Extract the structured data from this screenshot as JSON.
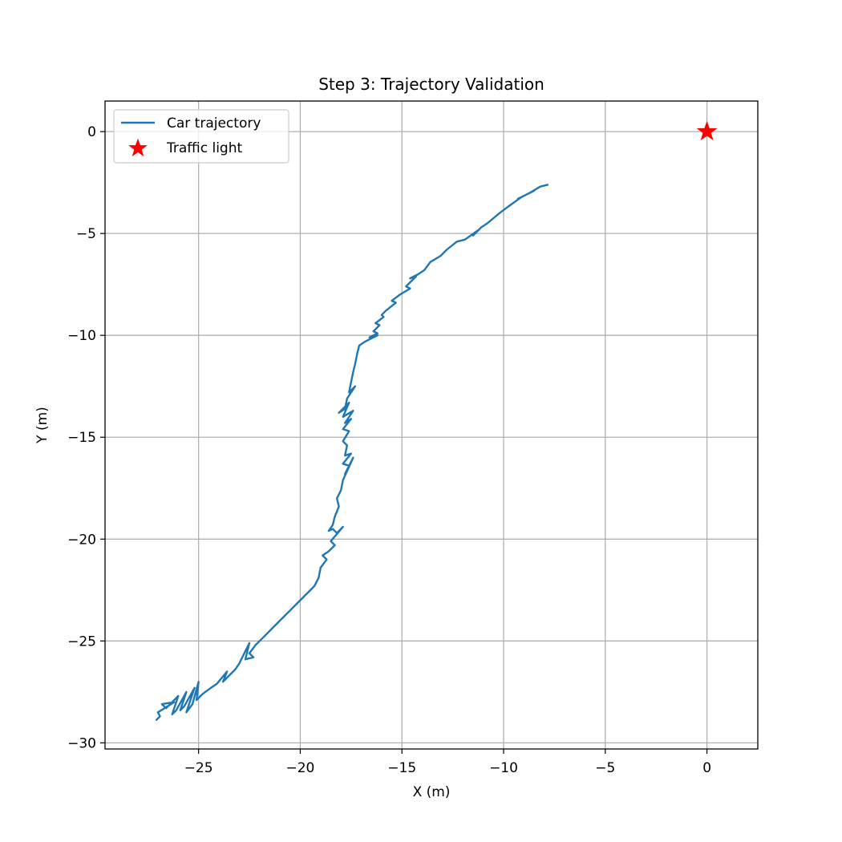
{
  "chart_data": {
    "type": "line",
    "title": "Step 3: Trajectory Validation",
    "xlabel": "X (m)",
    "ylabel": "Y (m)",
    "xlim": [
      -29.6,
      2.5
    ],
    "ylim": [
      -30.3,
      1.5
    ],
    "grid": true,
    "legend_position": "upper-left",
    "x_ticks": [
      -25,
      -20,
      -15,
      -10,
      -5,
      0
    ],
    "x_tick_labels": [
      "−25",
      "−20",
      "−15",
      "−10",
      "−5",
      "0"
    ],
    "y_ticks": [
      0,
      -5,
      -10,
      -15,
      -20,
      -25,
      -30
    ],
    "y_tick_labels": [
      "0",
      "−5",
      "−10",
      "−15",
      "−20",
      "−25",
      "−30"
    ],
    "series": [
      {
        "name": "Car trajectory",
        "color": "#1f77b4",
        "marker": "none",
        "points": [
          [
            -7.8,
            -2.6
          ],
          [
            -8.2,
            -2.7
          ],
          [
            -8.7,
            -3.0
          ],
          [
            -8.5,
            -2.9
          ],
          [
            -9.3,
            -3.3
          ],
          [
            -9.1,
            -3.2
          ],
          [
            -9.8,
            -3.7
          ],
          [
            -10.2,
            -4.0
          ],
          [
            -10.8,
            -4.5
          ],
          [
            -11.1,
            -4.7
          ],
          [
            -11.5,
            -5.1
          ],
          [
            -11.2,
            -4.8
          ],
          [
            -11.9,
            -5.3
          ],
          [
            -12.3,
            -5.4
          ],
          [
            -12.8,
            -5.8
          ],
          [
            -13.1,
            -6.1
          ],
          [
            -13.6,
            -6.4
          ],
          [
            -13.9,
            -6.8
          ],
          [
            -14.2,
            -7.0
          ],
          [
            -14.6,
            -7.2
          ],
          [
            -14.3,
            -7.1
          ],
          [
            -14.8,
            -7.6
          ],
          [
            -14.6,
            -7.7
          ],
          [
            -15.1,
            -8.0
          ],
          [
            -15.5,
            -8.3
          ],
          [
            -15.3,
            -8.4
          ],
          [
            -15.8,
            -8.8
          ],
          [
            -16.0,
            -9.0
          ],
          [
            -15.9,
            -9.1
          ],
          [
            -16.3,
            -9.4
          ],
          [
            -16.1,
            -9.5
          ],
          [
            -16.4,
            -9.8
          ],
          [
            -16.2,
            -9.9
          ],
          [
            -16.6,
            -10.1
          ],
          [
            -16.2,
            -10.0
          ],
          [
            -16.8,
            -10.3
          ],
          [
            -17.1,
            -10.5
          ],
          [
            -17.2,
            -10.9
          ],
          [
            -17.3,
            -11.4
          ],
          [
            -17.4,
            -11.8
          ],
          [
            -17.5,
            -12.3
          ],
          [
            -17.6,
            -12.8
          ],
          [
            -17.3,
            -12.5
          ],
          [
            -17.7,
            -13.1
          ],
          [
            -17.8,
            -13.6
          ],
          [
            -18.1,
            -13.8
          ],
          [
            -17.6,
            -13.3
          ],
          [
            -17.9,
            -14.0
          ],
          [
            -17.4,
            -13.7
          ],
          [
            -17.8,
            -14.3
          ],
          [
            -17.5,
            -14.1
          ],
          [
            -17.9,
            -14.6
          ],
          [
            -17.6,
            -14.7
          ],
          [
            -17.9,
            -15.2
          ],
          [
            -17.7,
            -15.4
          ],
          [
            -17.8,
            -15.9
          ],
          [
            -17.5,
            -15.8
          ],
          [
            -17.9,
            -16.3
          ],
          [
            -17.6,
            -16.4
          ],
          [
            -17.8,
            -16.8
          ],
          [
            -17.4,
            -16.0
          ],
          [
            -17.9,
            -17.1
          ],
          [
            -18.0,
            -17.6
          ],
          [
            -18.2,
            -18.0
          ],
          [
            -18.1,
            -18.4
          ],
          [
            -18.3,
            -18.9
          ],
          [
            -18.4,
            -19.3
          ],
          [
            -18.6,
            -19.6
          ],
          [
            -18.4,
            -19.5
          ],
          [
            -18.2,
            -19.7
          ],
          [
            -17.9,
            -19.4
          ],
          [
            -18.5,
            -20.1
          ],
          [
            -18.3,
            -20.3
          ],
          [
            -18.6,
            -20.6
          ],
          [
            -18.9,
            -20.8
          ],
          [
            -18.7,
            -21.0
          ],
          [
            -19.0,
            -21.4
          ],
          [
            -19.1,
            -21.9
          ],
          [
            -19.3,
            -22.3
          ],
          [
            -19.6,
            -22.6
          ],
          [
            -19.4,
            -22.4
          ],
          [
            -19.8,
            -22.8
          ],
          [
            -20.2,
            -23.2
          ],
          [
            -20.0,
            -23.0
          ],
          [
            -20.5,
            -23.5
          ],
          [
            -20.9,
            -23.9
          ],
          [
            -21.3,
            -24.3
          ],
          [
            -21.6,
            -24.6
          ],
          [
            -21.9,
            -24.9
          ],
          [
            -22.2,
            -25.2
          ],
          [
            -22.5,
            -25.6
          ],
          [
            -22.3,
            -25.8
          ],
          [
            -22.7,
            -25.9
          ],
          [
            -22.5,
            -25.1
          ],
          [
            -23.0,
            -26.1
          ],
          [
            -23.2,
            -26.4
          ],
          [
            -23.5,
            -26.7
          ],
          [
            -23.8,
            -27.0
          ],
          [
            -23.6,
            -26.5
          ],
          [
            -24.1,
            -27.1
          ],
          [
            -24.4,
            -27.3
          ],
          [
            -24.8,
            -27.6
          ],
          [
            -25.1,
            -27.9
          ],
          [
            -25.0,
            -27.0
          ],
          [
            -25.3,
            -28.1
          ],
          [
            -25.6,
            -28.5
          ],
          [
            -25.2,
            -27.3
          ],
          [
            -25.7,
            -28.2
          ],
          [
            -25.9,
            -28.4
          ],
          [
            -25.6,
            -27.5
          ],
          [
            -26.1,
            -28.4
          ],
          [
            -26.3,
            -28.6
          ],
          [
            -26.0,
            -27.7
          ],
          [
            -26.6,
            -28.3
          ],
          [
            -26.8,
            -28.1
          ],
          [
            -26.2,
            -28.0
          ],
          [
            -27.0,
            -28.5
          ],
          [
            -26.9,
            -28.7
          ],
          [
            -27.1,
            -28.9
          ]
        ]
      },
      {
        "name": "Traffic light",
        "color": "#ff0000",
        "marker": "star",
        "points": [
          [
            0,
            0
          ]
        ]
      }
    ]
  }
}
